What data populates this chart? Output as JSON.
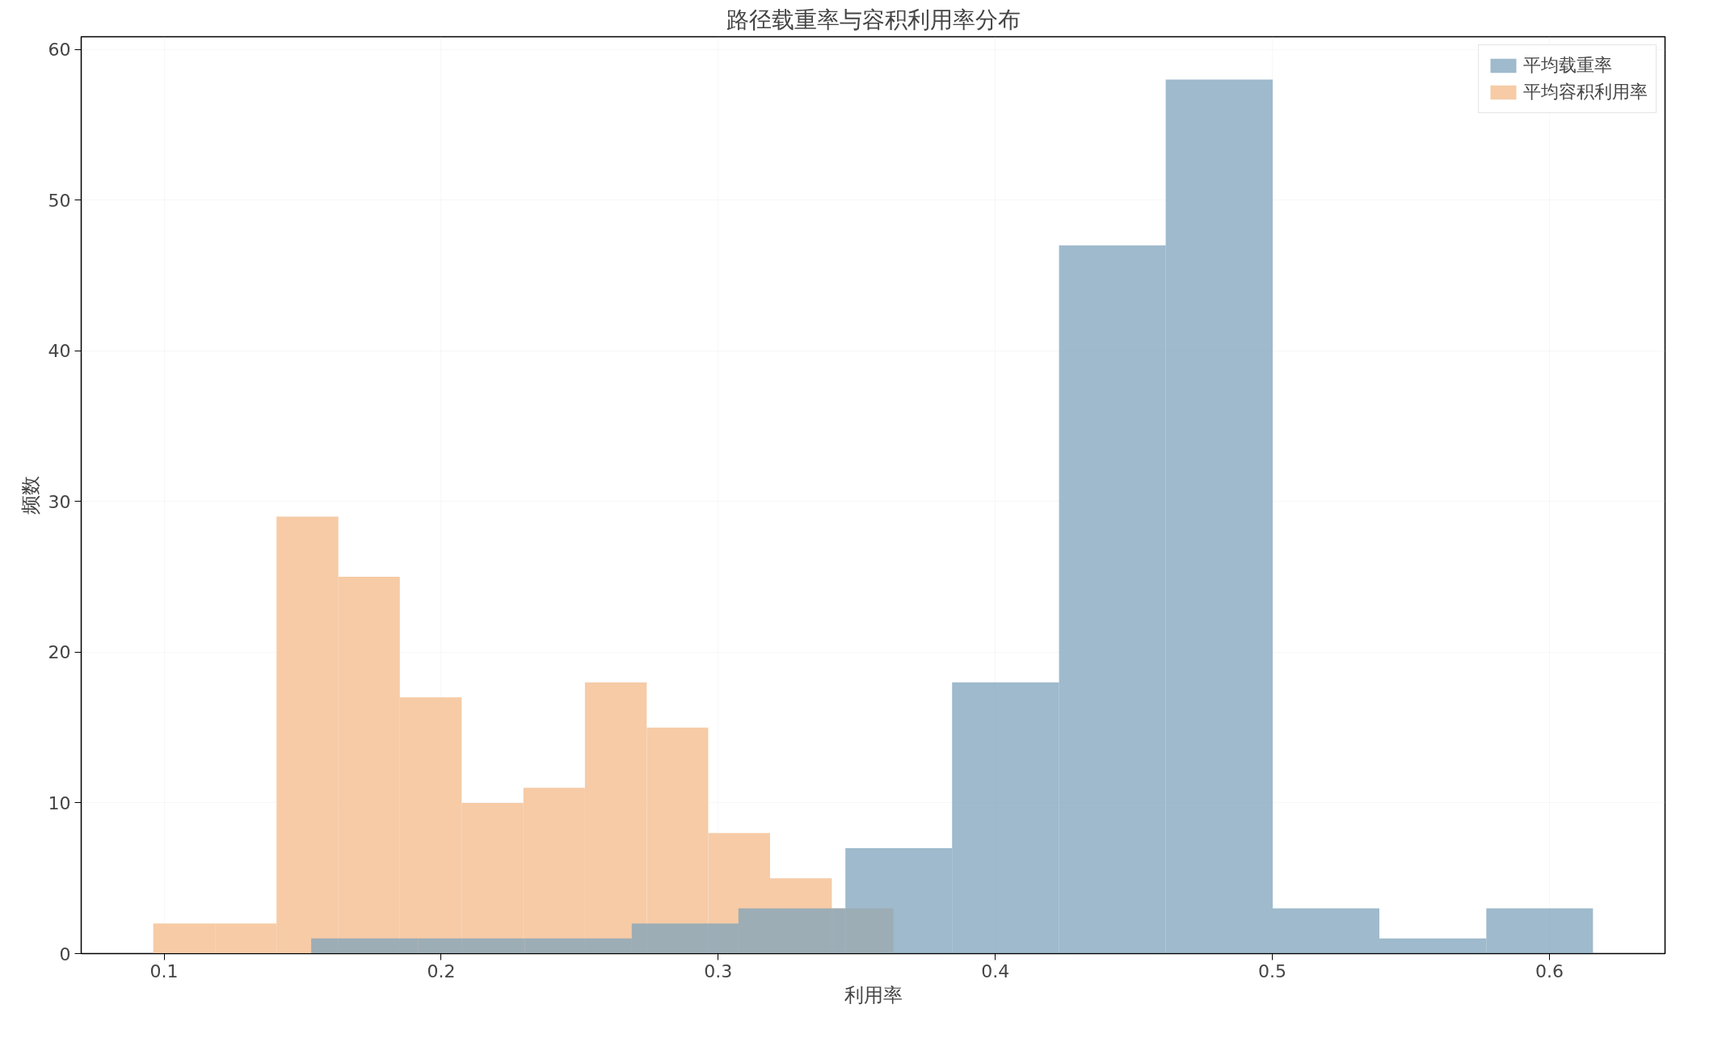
{
  "chart_data": {
    "type": "histogram",
    "title": "路径载重率与容积利用率分布",
    "xlabel": "利用率",
    "ylabel": "频数",
    "bins": [
      0.1531,
      0.1917,
      0.2302,
      0.2688,
      0.3073,
      0.3459,
      0.3844,
      0.423,
      0.4615,
      0.5001,
      0.5386,
      0.5772,
      0.6157
    ],
    "series": [
      {
        "name": "平均载重率",
        "color": "#7ea3bb",
        "values": [
          1,
          1,
          1,
          2,
          3,
          7,
          18,
          47,
          58,
          3,
          1,
          3
        ]
      },
      {
        "name": "平均容积利用率",
        "color": "#f6cba6",
        "bins": [
          0.0961,
          0.1184,
          0.1406,
          0.1629,
          0.1851,
          0.2074,
          0.2297,
          0.2519,
          0.2742,
          0.2964,
          0.3187,
          0.341,
          0.3632
        ],
        "values": [
          2,
          2,
          29,
          25,
          17,
          10,
          11,
          18,
          15,
          8,
          5,
          3
        ]
      }
    ],
    "xlim": [
      0.0701,
      0.6417
    ],
    "ylim": [
      0,
      60.84
    ],
    "xticks": [
      0.1,
      0.2,
      0.3,
      0.4,
      0.5,
      0.6
    ],
    "yticks": [
      0,
      10,
      20,
      30,
      40,
      50,
      60
    ],
    "grid": true,
    "legend": "top right"
  }
}
